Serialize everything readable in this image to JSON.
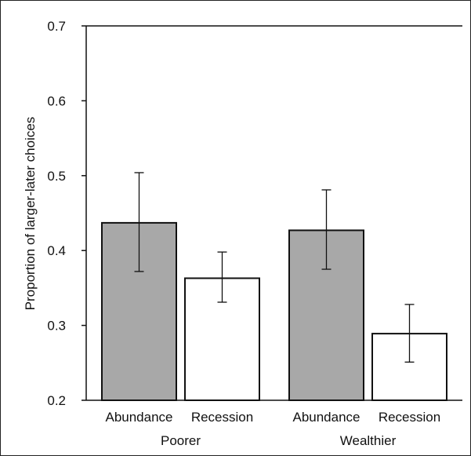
{
  "chart_data": {
    "type": "bar",
    "title": "",
    "xlabel": "",
    "ylabel": "Proportion of larger-later choices",
    "ylim": [
      0.2,
      0.7
    ],
    "yticks": [
      "0.7",
      "0.6",
      "0.5",
      "0.4",
      "0.3",
      "0.2"
    ],
    "ytick_values": [
      0.7,
      0.6,
      0.5,
      0.4,
      0.3,
      0.2
    ],
    "grid": false,
    "groups": [
      "Poorer",
      "Wealthier"
    ],
    "categories": [
      "Abundance",
      "Recession",
      "Abundance",
      "Recession"
    ],
    "values": [
      0.437,
      0.363,
      0.427,
      0.289
    ],
    "error_low": [
      0.372,
      0.331,
      0.375,
      0.251
    ],
    "error_high": [
      0.504,
      0.398,
      0.481,
      0.328
    ],
    "colors": {
      "Abundance": "#a8a8a8",
      "Recession": "#ffffff",
      "stroke": "#111111"
    }
  }
}
